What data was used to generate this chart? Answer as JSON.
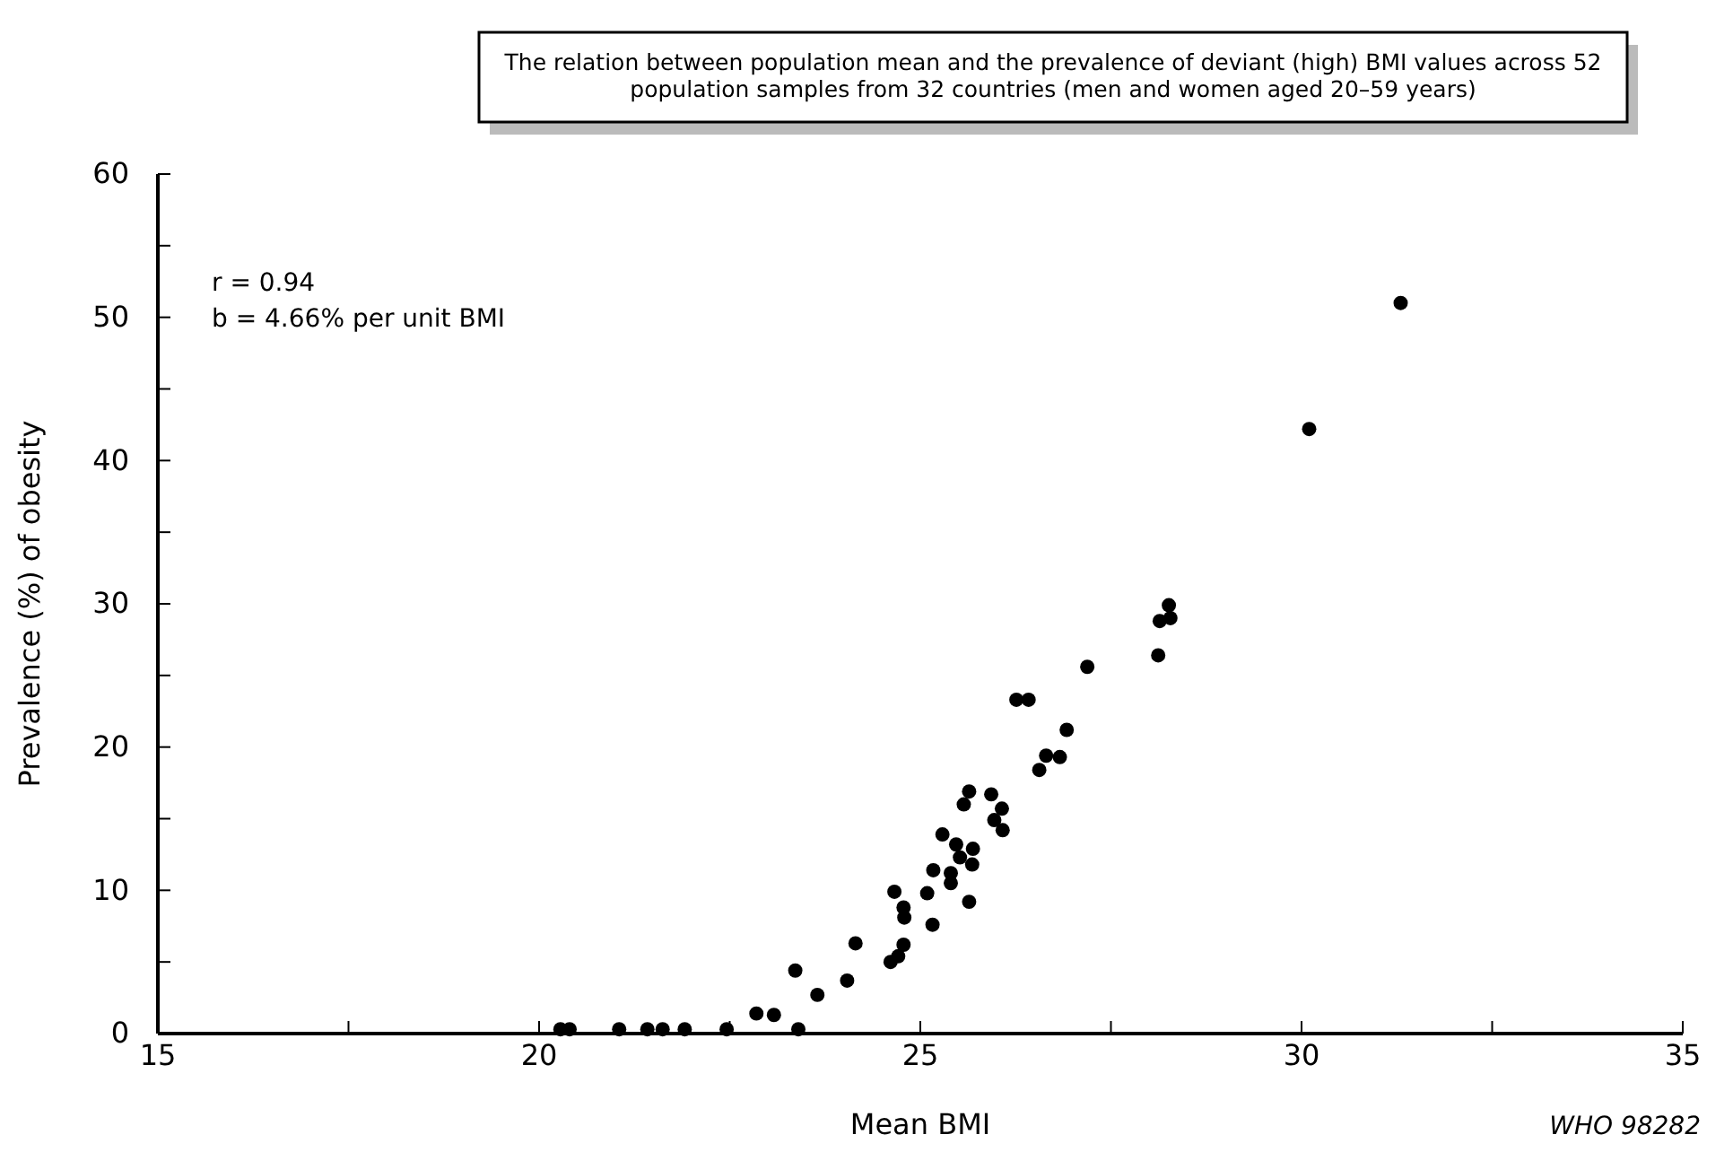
{
  "chart_data": {
    "type": "scatter",
    "title": "The relation between population mean and the prevalence of deviant (high) BMI values across 52 population samples from 32 countries (men and women aged 20–59 years)",
    "xlabel": "Mean BMI",
    "ylabel": "Prevalence (%) of obesity",
    "annotations": [
      "r = 0.94",
      "b = 4.66% per unit BMI",
      "WHO 98282"
    ],
    "xlim": [
      15,
      35
    ],
    "xticks": [
      15,
      {
        "value": 17.5,
        "label": null
      },
      20,
      {
        "value": 22.5,
        "label": null
      },
      25,
      {
        "value": 27.5,
        "label": null
      },
      30,
      {
        "value": 32.5,
        "label": null
      },
      35
    ],
    "ylim": [
      0,
      60
    ],
    "yticks": [
      0,
      {
        "value": 5,
        "label": null
      },
      10,
      {
        "value": 15,
        "label": null
      },
      20,
      {
        "value": 25,
        "label": null
      },
      30,
      {
        "value": 35,
        "label": null
      },
      40,
      {
        "value": 45,
        "label": null
      },
      50,
      {
        "value": 55,
        "label": null
      },
      60
    ],
    "marker": "circle",
    "grid": false,
    "series": [
      {
        "color": "#000000",
        "x": [
          20.28,
          20.4,
          21.05,
          21.42,
          21.62,
          21.91,
          22.46,
          22.85,
          23.08,
          23.4,
          23.36,
          23.65,
          24.04,
          24.15,
          24.61,
          24.71,
          24.78,
          24.66,
          24.78,
          24.79,
          25.16,
          25.09,
          25.17,
          25.29,
          25.4,
          25.4,
          25.47,
          25.57,
          25.64,
          25.52,
          25.68,
          25.69,
          25.64,
          25.93,
          26.07,
          25.97,
          26.08,
          26.26,
          26.42,
          27.19,
          28.12,
          28.14,
          28.28,
          28.26,
          26.92,
          26.83,
          26.65,
          26.56,
          30.1,
          31.3
        ],
        "values": [
          0.3,
          0.3,
          0.3,
          0.3,
          0.3,
          0.3,
          0.3,
          1.4,
          1.3,
          0.3,
          4.4,
          2.7,
          3.7,
          6.3,
          5.0,
          5.4,
          6.2,
          9.9,
          8.8,
          8.1,
          7.6,
          9.8,
          11.4,
          13.9,
          11.2,
          10.5,
          13.2,
          16.0,
          16.9,
          12.3,
          11.8,
          12.9,
          9.2,
          16.7,
          15.7,
          14.9,
          14.2,
          23.3,
          23.3,
          25.6,
          26.4,
          28.8,
          29.0,
          29.9,
          21.2,
          19.3,
          19.4,
          18.4,
          42.2,
          51.0
        ]
      }
    ]
  }
}
